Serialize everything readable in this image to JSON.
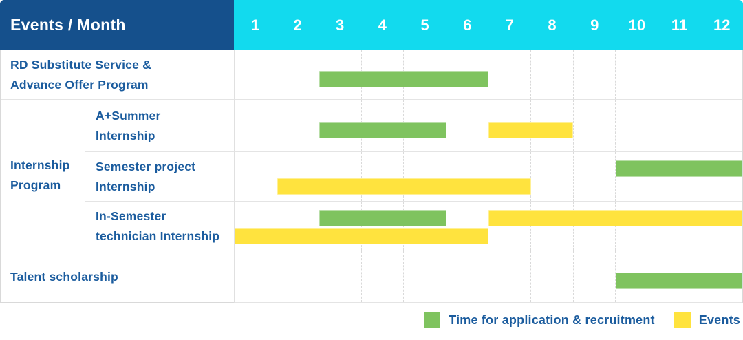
{
  "header": {
    "title": "Events / Month"
  },
  "colors": {
    "header_bg": "#15508c",
    "months_bg": "#12daee",
    "label_text_blue": "#1b5c9e",
    "recruitment_green": "#7fc35f",
    "events_yellow": "#ffe33e",
    "gridline_gray": "#d9d9d9"
  },
  "chart_data": {
    "type": "bar",
    "subtype": "gantt-schedule",
    "title": "Events / Month",
    "x_axis_label": "Month",
    "months": [
      "1",
      "2",
      "3",
      "4",
      "5",
      "6",
      "7",
      "8",
      "9",
      "10",
      "11",
      "12"
    ],
    "x_range": [
      1,
      12
    ],
    "grid": "dashed-vertical-month-lines",
    "legend_position": "bottom-right",
    "series": [
      {
        "key": "recruitment",
        "name": "Time for application & recruitment",
        "color": "#7fc35f"
      },
      {
        "key": "events",
        "name": "Events",
        "color": "#ffe33e"
      }
    ],
    "group": {
      "label_lines": [
        "Internship",
        "Program"
      ],
      "label": "Internship Program",
      "spans_rows": [
        2,
        4
      ]
    },
    "rows": [
      {
        "label": "RD Substitute Service & Advance Offer Program",
        "label_lines": [
          "RD Substitute Service &",
          "Advance Offer Program"
        ],
        "in_group": false,
        "lines": 1,
        "bars": [
          {
            "series": "recruitment",
            "start_month": 3,
            "end_month": 6,
            "line": 0
          }
        ]
      },
      {
        "label": "A+Summer Internship",
        "label_lines": [
          "A+Summer",
          "Internship"
        ],
        "in_group": true,
        "lines": 1,
        "bars": [
          {
            "series": "recruitment",
            "start_month": 3,
            "end_month": 5,
            "line": 0
          },
          {
            "series": "events",
            "start_month": 7,
            "end_month": 8,
            "line": 0
          }
        ]
      },
      {
        "label": "Semester project Internship",
        "label_lines": [
          "Semester project",
          "Internship"
        ],
        "in_group": true,
        "lines": 2,
        "bars": [
          {
            "series": "recruitment",
            "start_month": 10,
            "end_month": 12,
            "line": 0
          },
          {
            "series": "events",
            "start_month": 2,
            "end_month": 7,
            "line": 1
          }
        ]
      },
      {
        "label": "In-Semester technician Internship",
        "label_lines": [
          "In-Semester",
          "technician Internship"
        ],
        "in_group": true,
        "lines": 2,
        "bars": [
          {
            "series": "recruitment",
            "start_month": 3,
            "end_month": 5,
            "line": 0
          },
          {
            "series": "events",
            "start_month": 7,
            "end_month": 12,
            "line": 0
          },
          {
            "series": "events",
            "start_month": 1,
            "end_month": 6,
            "line": 1
          }
        ]
      },
      {
        "label": "Talent scholarship",
        "label_lines": [
          "Talent scholarship"
        ],
        "in_group": false,
        "lines": 1,
        "bars": [
          {
            "series": "recruitment",
            "start_month": 10,
            "end_month": 12,
            "line": 0
          }
        ]
      }
    ]
  },
  "legend": {
    "items": [
      {
        "label": "Time for application & recruitment",
        "series": "recruitment"
      },
      {
        "label": "Events",
        "series": "events"
      }
    ]
  }
}
